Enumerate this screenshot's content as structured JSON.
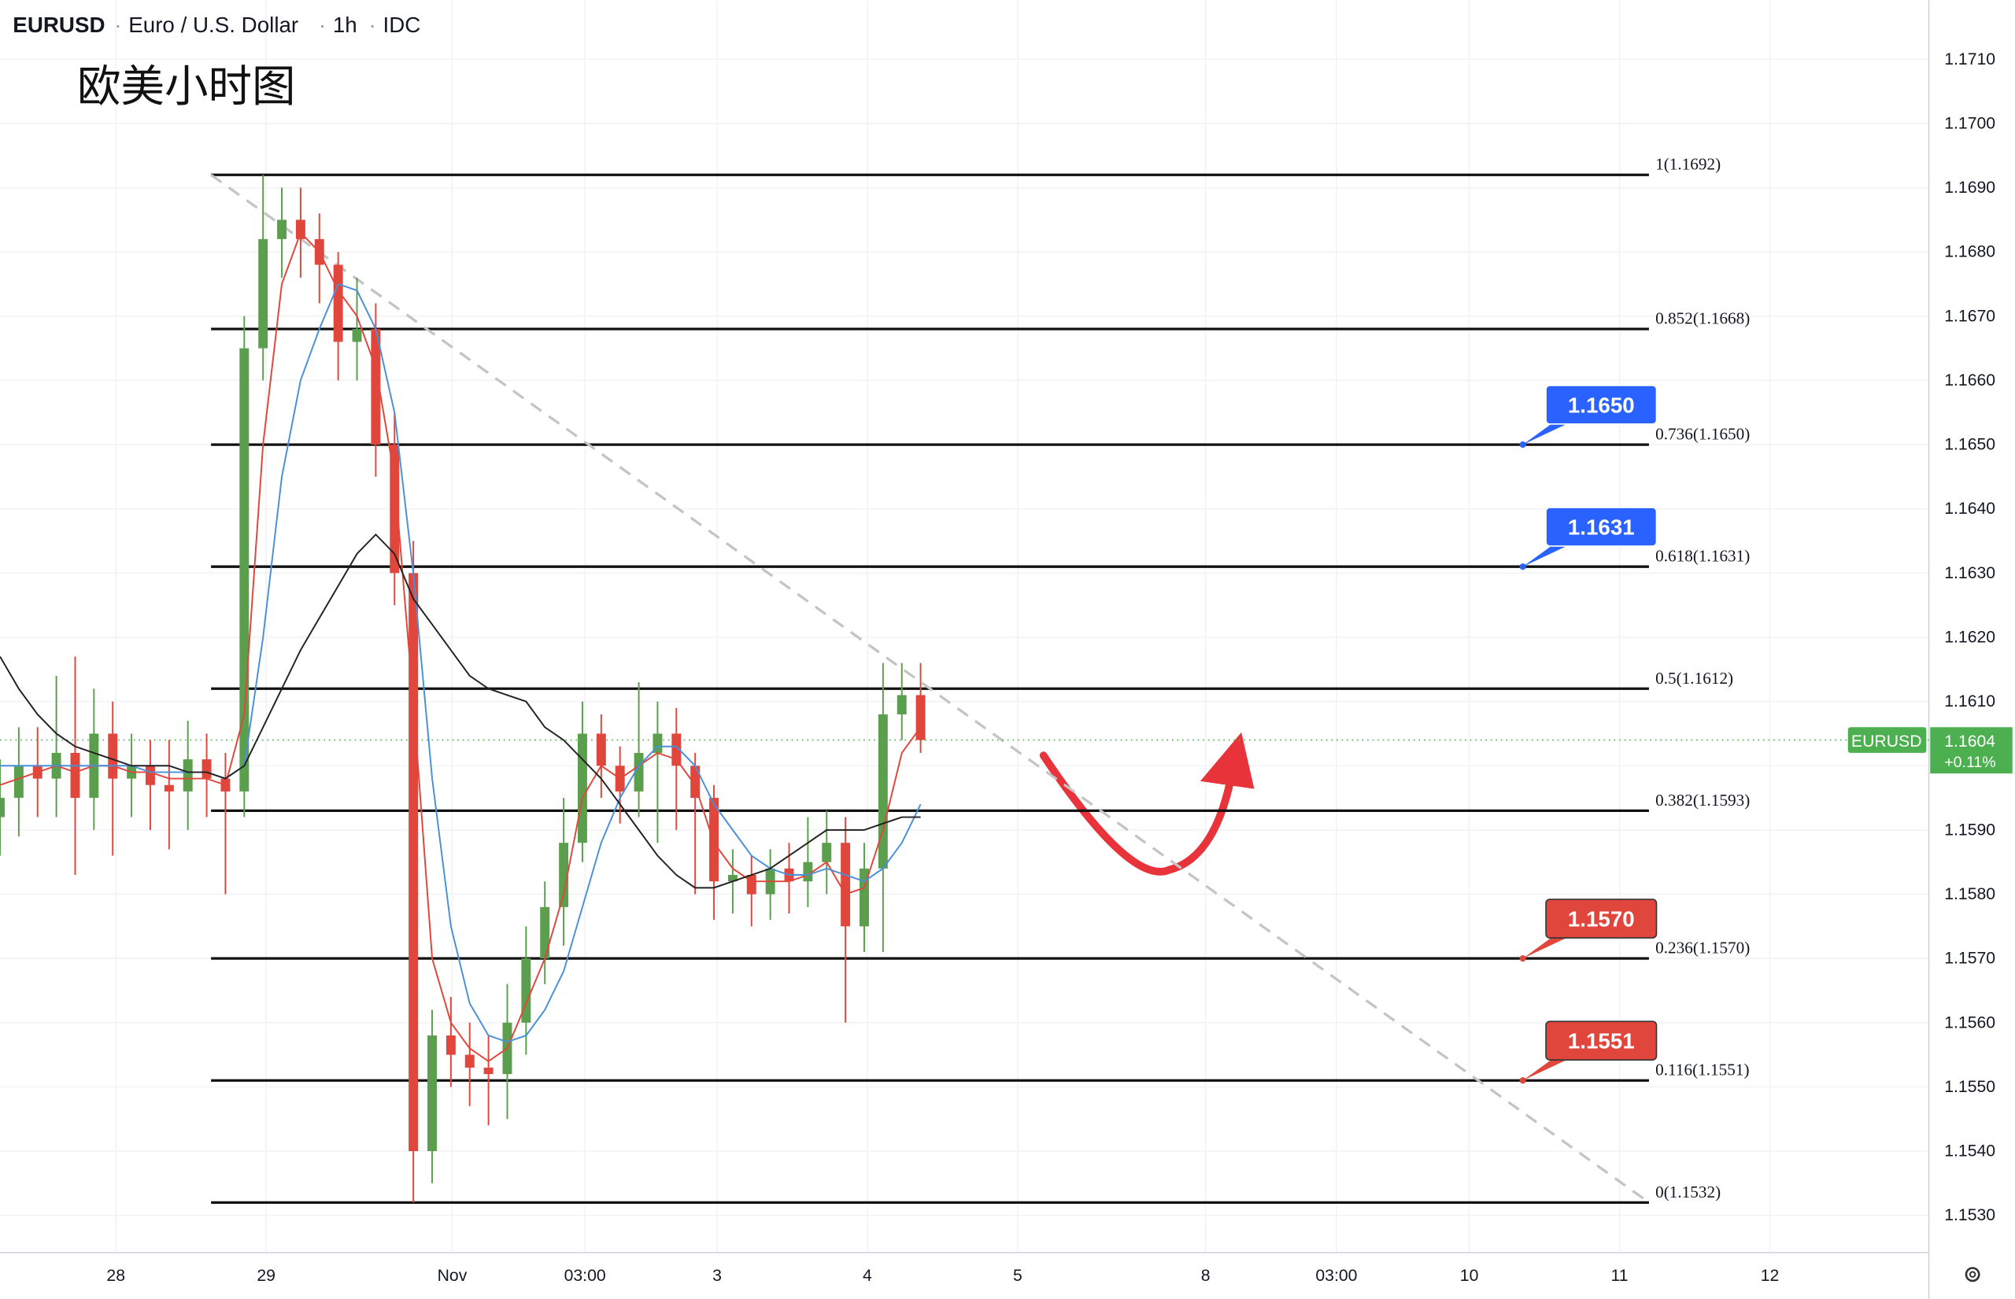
{
  "chart_data": {
    "type": "candlestick",
    "header": {
      "symbol": "EURUSD",
      "name": "Euro / U.S. Dollar",
      "interval": "1h",
      "source": "IDC"
    },
    "annotation": "欧美小时图",
    "x": [
      0,
      3,
      6,
      9,
      12,
      15,
      18,
      21,
      24,
      27,
      30,
      33,
      36,
      39,
      42,
      45,
      48,
      51,
      54,
      57,
      60,
      63,
      66,
      69,
      72,
      75,
      78,
      81,
      84,
      87,
      90,
      93,
      96,
      99,
      102,
      105,
      108,
      111,
      114,
      117,
      120,
      123,
      126,
      129,
      132,
      135,
      138,
      141,
      144,
      147
    ],
    "open": [
      1.1592,
      1.1595,
      1.16,
      1.1598,
      1.1602,
      1.1595,
      1.1605,
      1.1598,
      1.16,
      1.1597,
      1.1596,
      1.1601,
      1.1598,
      1.1596,
      1.1665,
      1.1682,
      1.1685,
      1.1682,
      1.1678,
      1.1666,
      1.1668,
      1.165,
      1.163,
      1.154,
      1.1558,
      1.1555,
      1.1553,
      1.1552,
      1.156,
      1.157,
      1.1578,
      1.1588,
      1.1605,
      1.16,
      1.1596,
      1.1602,
      1.1605,
      1.16,
      1.1595,
      1.1582,
      1.1583,
      1.158,
      1.1584,
      1.1582,
      1.1585,
      1.1588,
      1.1575,
      1.1584,
      1.1608,
      1.1611
    ],
    "high": [
      1.1601,
      1.1606,
      1.1606,
      1.1614,
      1.1617,
      1.1612,
      1.161,
      1.1605,
      1.1604,
      1.1604,
      1.1607,
      1.1605,
      1.1602,
      1.167,
      1.1692,
      1.169,
      1.169,
      1.1686,
      1.168,
      1.1676,
      1.1672,
      1.1655,
      1.1635,
      1.1562,
      1.1564,
      1.156,
      1.1558,
      1.1566,
      1.1575,
      1.1582,
      1.1595,
      1.161,
      1.1608,
      1.1603,
      1.1613,
      1.161,
      1.1609,
      1.1602,
      1.1597,
      1.1587,
      1.1586,
      1.1587,
      1.1588,
      1.1592,
      1.1593,
      1.1592,
      1.1588,
      1.1616,
      1.1616,
      1.1616
    ],
    "low": [
      1.1586,
      1.1589,
      1.1592,
      1.1592,
      1.1583,
      1.159,
      1.1586,
      1.1592,
      1.159,
      1.1587,
      1.159,
      1.1592,
      1.158,
      1.1592,
      1.166,
      1.1676,
      1.1676,
      1.1672,
      1.166,
      1.166,
      1.1645,
      1.1625,
      1.1532,
      1.1535,
      1.155,
      1.1547,
      1.1544,
      1.1545,
      1.1555,
      1.1566,
      1.1572,
      1.1585,
      1.1595,
      1.1591,
      1.1592,
      1.1588,
      1.159,
      1.158,
      1.1576,
      1.1577,
      1.1575,
      1.1576,
      1.1577,
      1.1578,
      1.158,
      1.156,
      1.1571,
      1.1571,
      1.1604,
      1.1602
    ],
    "close": [
      1.1595,
      1.16,
      1.1598,
      1.1602,
      1.1595,
      1.1605,
      1.1598,
      1.16,
      1.1597,
      1.1596,
      1.1601,
      1.1598,
      1.1596,
      1.1665,
      1.1682,
      1.1685,
      1.1682,
      1.1678,
      1.1666,
      1.1668,
      1.165,
      1.163,
      1.154,
      1.1558,
      1.1555,
      1.1553,
      1.1552,
      1.156,
      1.157,
      1.1578,
      1.1588,
      1.1605,
      1.16,
      1.1596,
      1.1602,
      1.1605,
      1.16,
      1.1595,
      1.1582,
      1.1583,
      1.158,
      1.1584,
      1.1582,
      1.1585,
      1.1588,
      1.1575,
      1.1584,
      1.1608,
      1.1611,
      1.1604
    ],
    "up_color": "#5b9e4d",
    "down_color": "#e0463b",
    "series": [
      {
        "color": "#e0463b",
        "values": [
          1.1597,
          1.1598,
          1.1599,
          1.16,
          1.1599,
          1.16,
          1.16,
          1.1599,
          1.1599,
          1.1598,
          1.1598,
          1.1598,
          1.1597,
          1.1608,
          1.165,
          1.1675,
          1.1683,
          1.168,
          1.1674,
          1.167,
          1.1662,
          1.1645,
          1.161,
          1.157,
          1.156,
          1.1556,
          1.1554,
          1.1556,
          1.1563,
          1.157,
          1.158,
          1.1595,
          1.16,
          1.1598,
          1.16,
          1.1602,
          1.1601,
          1.1597,
          1.1588,
          1.1584,
          1.1582,
          1.1582,
          1.1582,
          1.1583,
          1.1585,
          1.158,
          1.1581,
          1.159,
          1.1602,
          1.1606
        ]
      },
      {
        "color": "#4a90d9",
        "values": [
          1.16,
          1.16,
          1.16,
          1.16,
          1.16,
          1.16,
          1.16,
          1.16,
          1.1599,
          1.1599,
          1.1599,
          1.1599,
          1.1598,
          1.16,
          1.162,
          1.1645,
          1.166,
          1.1668,
          1.1675,
          1.1674,
          1.1668,
          1.1655,
          1.163,
          1.1598,
          1.1575,
          1.1563,
          1.1558,
          1.1557,
          1.1558,
          1.1562,
          1.1568,
          1.1578,
          1.1588,
          1.1595,
          1.16,
          1.1603,
          1.1603,
          1.16,
          1.1594,
          1.159,
          1.1586,
          1.1584,
          1.1583,
          1.1583,
          1.1584,
          1.1583,
          1.1582,
          1.1584,
          1.1588,
          1.1594
        ]
      },
      {
        "color": "#222222",
        "values": [
          1.1617,
          1.1612,
          1.1608,
          1.1605,
          1.1603,
          1.1602,
          1.1601,
          1.16,
          1.16,
          1.16,
          1.1599,
          1.1599,
          1.1598,
          1.16,
          1.1606,
          1.1612,
          1.1618,
          1.1623,
          1.1628,
          1.1633,
          1.1636,
          1.1633,
          1.1626,
          1.1622,
          1.1618,
          1.1614,
          1.1612,
          1.1611,
          1.161,
          1.1606,
          1.1604,
          1.1601,
          1.1598,
          1.1594,
          1.159,
          1.1586,
          1.1583,
          1.1581,
          1.1581,
          1.1582,
          1.1583,
          1.1584,
          1.1586,
          1.1588,
          1.159,
          1.159,
          1.159,
          1.1591,
          1.1592,
          1.1592
        ]
      }
    ],
    "fib_x": [
      33.7,
      263.3
    ],
    "fib_levels": [
      {
        "label": "1(1.1692)",
        "value": 1.1692
      },
      {
        "label": "0.852(1.1668)",
        "value": 1.1668
      },
      {
        "label": "0.736(1.1650)",
        "value": 1.165
      },
      {
        "label": "0.618(1.1631)",
        "value": 1.1631
      },
      {
        "label": "0.5(1.1612)",
        "value": 1.1612
      },
      {
        "label": "0.382(1.1593)",
        "value": 1.1593
      },
      {
        "label": "0.236(1.1570)",
        "value": 1.157
      },
      {
        "label": "0.116(1.1551)",
        "value": 1.1551
      },
      {
        "label": "0(1.1532)",
        "value": 1.1532
      }
    ],
    "trendline": {
      "x": [
        33.7,
        263.3
      ],
      "y": [
        1.1692,
        1.1532
      ]
    },
    "callouts": [
      {
        "label": "1.1650",
        "value": 1.165,
        "color": "#2962ff"
      },
      {
        "label": "1.1631",
        "value": 1.1631,
        "color": "#2962ff"
      },
      {
        "label": "1.1570",
        "value": 1.157,
        "color": "#e0463b"
      },
      {
        "label": "1.1551",
        "value": 1.1551,
        "color": "#e0463b"
      }
    ],
    "last": {
      "symbol": "EURUSD",
      "value": 1.1604,
      "label": "1.1604",
      "change": "+0.11%",
      "color": "#4caf50"
    },
    "xlim": [
      0,
      308
    ],
    "xticks": [
      {
        "value": 18.5,
        "label": "28"
      },
      {
        "value": 42.5,
        "label": "29"
      },
      {
        "value": 72.2,
        "label": "Nov"
      },
      {
        "value": 93.4,
        "label": "03:00"
      },
      {
        "value": 114.5,
        "label": "3"
      },
      {
        "value": 138.5,
        "label": "4"
      },
      {
        "value": 162.5,
        "label": "5"
      },
      {
        "value": 192.5,
        "label": "8"
      },
      {
        "value": 213.4,
        "label": "03:00"
      },
      {
        "value": 234.6,
        "label": "10"
      },
      {
        "value": 258.6,
        "label": "11"
      },
      {
        "value": 282.6,
        "label": "12"
      }
    ],
    "ylim": [
      1.15242,
      1.17192
    ],
    "yticks": [
      {
        "value": 1.153,
        "label": "1.1530"
      },
      {
        "value": 1.154,
        "label": "1.1540"
      },
      {
        "value": 1.155,
        "label": "1.1550"
      },
      {
        "value": 1.156,
        "label": "1.1560"
      },
      {
        "value": 1.157,
        "label": "1.1570"
      },
      {
        "value": 1.158,
        "label": "1.1580"
      },
      {
        "value": 1.159,
        "label": "1.1590"
      },
      {
        "value": 1.16,
        "label": "1.1600"
      },
      {
        "value": 1.161,
        "label": "1.1610"
      },
      {
        "value": 1.162,
        "label": "1.1620"
      },
      {
        "value": 1.163,
        "label": "1.1630"
      },
      {
        "value": 1.164,
        "label": "1.1640"
      },
      {
        "value": 1.165,
        "label": "1.1650"
      },
      {
        "value": 1.166,
        "label": "1.1660"
      },
      {
        "value": 1.167,
        "label": "1.1670"
      },
      {
        "value": 1.168,
        "label": "1.1680"
      },
      {
        "value": 1.169,
        "label": "1.1690"
      },
      {
        "value": 1.17,
        "label": "1.1700"
      },
      {
        "value": 1.171,
        "label": "1.1710"
      }
    ],
    "grid": true
  }
}
